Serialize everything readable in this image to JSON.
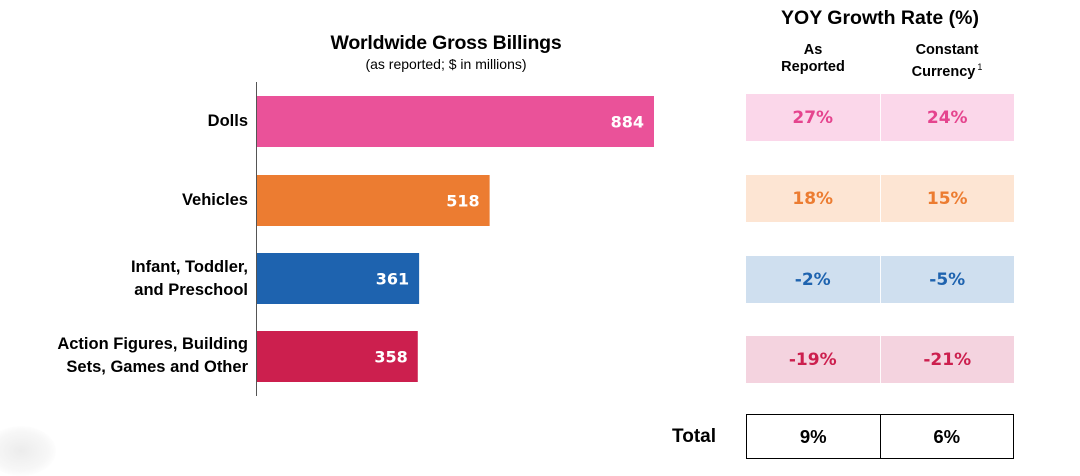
{
  "chart_data": {
    "type": "bar",
    "orientation": "horizontal",
    "title": "Worldwide Gross Billings",
    "subtitle": "(as reported; $ in millions)",
    "categories": [
      [
        "Dolls"
      ],
      [
        "Vehicles"
      ],
      [
        "Infant, Toddler,",
        "and Preschool"
      ],
      [
        "Action Figures, Building",
        "Sets, Games and Other"
      ]
    ],
    "values": [
      884,
      518,
      361,
      358
    ],
    "value_labels": [
      "884",
      "518",
      "361",
      "358"
    ],
    "bar_colors": [
      "#EA5299",
      "#EC7C31",
      "#1E63AF",
      "#CC1F4E"
    ],
    "xlim": [
      0,
      884
    ]
  },
  "growth_table": {
    "title": "YOY Growth Rate (%)",
    "headers": {
      "as_reported": [
        "As",
        "Reported"
      ],
      "constant_currency": [
        "Constant",
        "Currency"
      ],
      "footnote": "1"
    },
    "rows": [
      {
        "as_reported": "27%",
        "constant_currency": "24%",
        "bg": "#FBD7EA",
        "color": "#E5448E"
      },
      {
        "as_reported": "18%",
        "constant_currency": "15%",
        "bg": "#FDE5D3",
        "color": "#EC7C31"
      },
      {
        "as_reported": "-2%",
        "constant_currency": "-5%",
        "bg": "#CFDFEF",
        "color": "#1E63AF"
      },
      {
        "as_reported": "-19%",
        "constant_currency": "-21%",
        "bg": "#F4D3DF",
        "color": "#CC1F4E"
      }
    ],
    "total": {
      "label": "Total",
      "as_reported": "9%",
      "constant_currency": "6%"
    }
  }
}
